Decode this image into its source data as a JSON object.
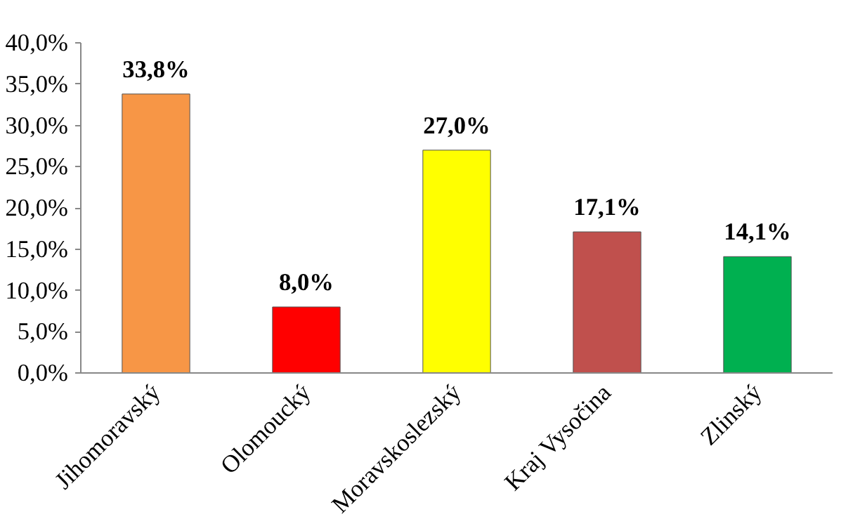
{
  "chart_data": {
    "type": "bar",
    "categories": [
      "Jihomoravský",
      "Olomoucký",
      "Moravskoslezský",
      "Kraj Vysočina",
      "Zlinský"
    ],
    "values": [
      33.8,
      8.0,
      27.0,
      17.1,
      14.1
    ],
    "colors": [
      "#f79646",
      "#ff0000",
      "#ffff00",
      "#c0504d",
      "#00b050"
    ],
    "value_labels": [
      "33,8%",
      "8,0%",
      "27,0%",
      "17,1%",
      "14,1%"
    ],
    "ylim": [
      0,
      40
    ],
    "yticks": [
      {
        "value": 0,
        "label": "0,0%"
      },
      {
        "value": 5,
        "label": "5,0%"
      },
      {
        "value": 10,
        "label": "10,0%"
      },
      {
        "value": 15,
        "label": "15,0%"
      },
      {
        "value": 20,
        "label": "20,0%"
      },
      {
        "value": 25,
        "label": "25,0%"
      },
      {
        "value": 30,
        "label": "30,0%"
      },
      {
        "value": 35,
        "label": "35,0%"
      },
      {
        "value": 40,
        "label": "40,0%"
      }
    ],
    "grid": false
  }
}
